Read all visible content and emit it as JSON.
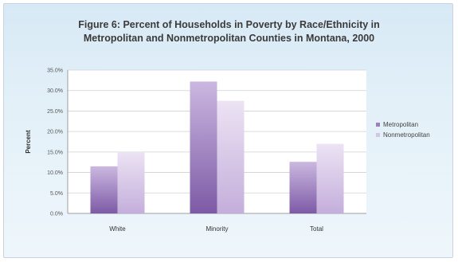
{
  "chart_data": {
    "type": "bar",
    "title": "Figure 6: Percent of Households in Poverty by Race/Ethnicity in Metropolitan and Nonmetropolitan Counties in Montana, 2000",
    "title_lines": [
      "Figure 6: Percent of Households in Poverty by Race/Ethnicity in",
      "Metropolitan and Nonmetropolitan Counties in Montana, 2000"
    ],
    "xlabel": "",
    "ylabel": "Percent",
    "categories": [
      "White",
      "Minority",
      "Total"
    ],
    "series": [
      {
        "name": "Metropolitan",
        "values": [
          11.5,
          32.2,
          12.6
        ],
        "color": "#9b7fbf"
      },
      {
        "name": "Nonmetropolitan",
        "values": [
          15.0,
          27.5,
          17.0
        ],
        "color": "#d6c6e6"
      }
    ],
    "ylim": [
      0,
      35
    ],
    "yticks": [
      "0.0%",
      "5.0%",
      "10.0%",
      "15.0%",
      "20.0%",
      "25.0%",
      "30.0%",
      "35.0%"
    ],
    "ytick_values": [
      0,
      5,
      10,
      15,
      20,
      25,
      30,
      35
    ],
    "grid": true,
    "legend_position": "right"
  }
}
